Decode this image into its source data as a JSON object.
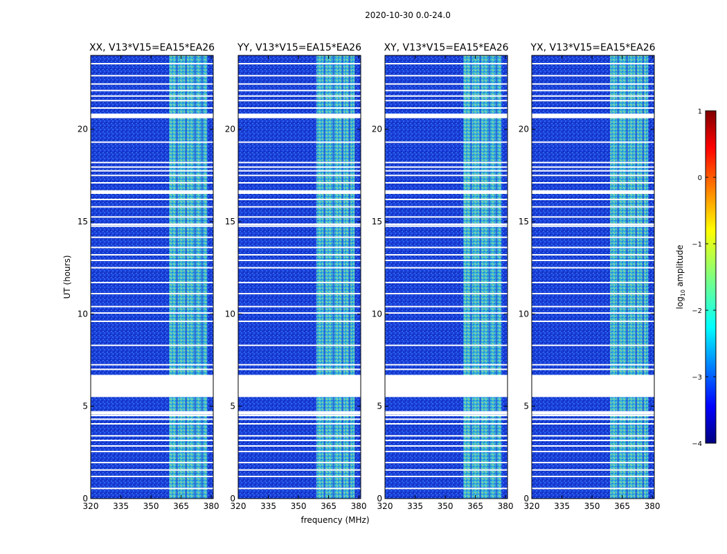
{
  "chart_data": {
    "type": "heatmap",
    "suptitle": "2020-10-30 0.0-24.0",
    "panels": [
      {
        "title": "XX, V13*V15=EA15*EA26"
      },
      {
        "title": "YY, V13*V15=EA15*EA26"
      },
      {
        "title": "XY, V13*V15=EA15*EA26"
      },
      {
        "title": "YX, V13*V15=EA15*EA26"
      }
    ],
    "xlabel": "frequency (MHz)",
    "ylabel": "UT (hours)",
    "xlim": [
      320,
      381
    ],
    "ylim": [
      0,
      24
    ],
    "xticks": [
      320,
      335,
      350,
      365,
      380
    ],
    "yticks": [
      0,
      5,
      10,
      15,
      20
    ],
    "colorbar": {
      "label_prefix": "log",
      "label_sub": "10",
      "label_suffix": " amplitude",
      "range": [
        -4,
        1
      ],
      "ticks": [
        -4,
        -3,
        -2,
        -1,
        0,
        1
      ],
      "cmap": "jet"
    },
    "rfi_band_mhz": [
      359,
      378
    ],
    "flagged_rows_ut": [
      0.55,
      1.2,
      1.55,
      1.95,
      2.55,
      2.85,
      3.15,
      3.4,
      4.05,
      4.3,
      4.5,
      4.7,
      7.0,
      7.25,
      8.3,
      9.6,
      10.05,
      10.4,
      11.1,
      11.7,
      12.5,
      12.9,
      13.2,
      13.6,
      14.15,
      14.75,
      15.25,
      15.8,
      16.2,
      16.55,
      17.1,
      17.5,
      17.75,
      17.95,
      18.2,
      19.3,
      20.75,
      21.15,
      21.55,
      21.8,
      22.1,
      22.45,
      22.9,
      23.55
    ],
    "flagged_bands_ut": [
      [
        5.5,
        6.7
      ],
      [
        20.6,
        20.85
      ],
      [
        16.5,
        16.7
      ],
      [
        14.8,
        14.9
      ],
      [
        4.55,
        4.7
      ]
    ]
  }
}
